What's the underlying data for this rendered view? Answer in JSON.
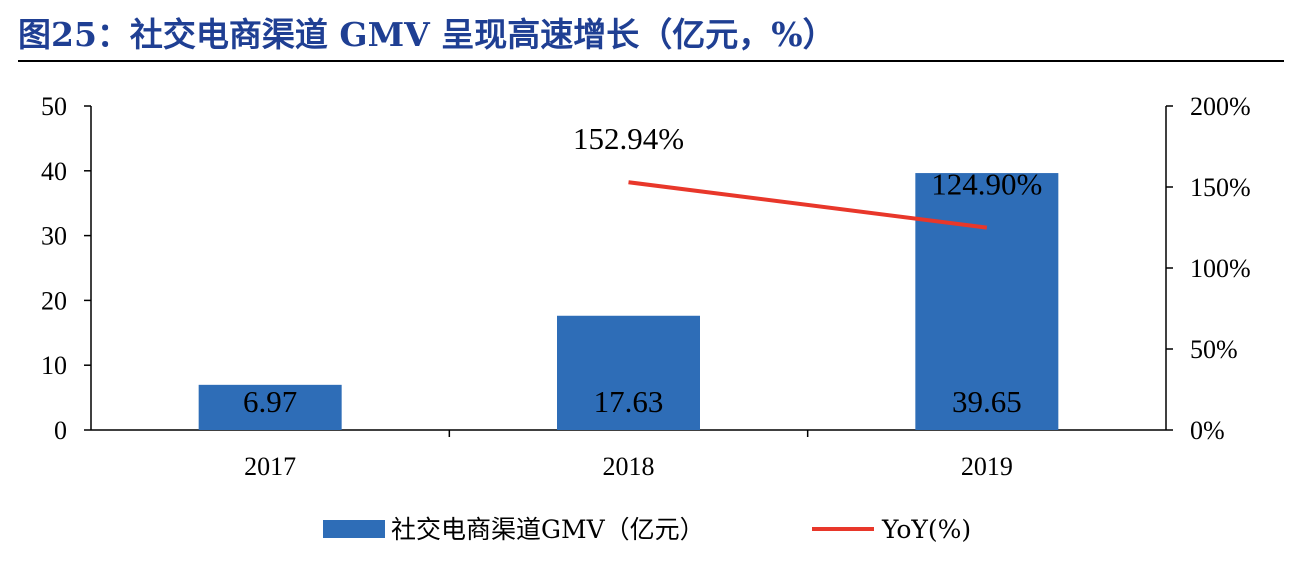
{
  "title": "图25：社交电商渠道 GMV 呈现高速增长（亿元，%）",
  "chart_data": {
    "type": "bar",
    "categories": [
      "2017",
      "2018",
      "2019"
    ],
    "series": [
      {
        "name": "社交电商渠道GMV（亿元）",
        "kind": "bar",
        "axis": "left",
        "color": "#2e6db7",
        "values": [
          6.97,
          17.63,
          39.65
        ],
        "labels": [
          "6.97",
          "17.63",
          "39.65"
        ]
      },
      {
        "name": "YoY(%)",
        "kind": "line",
        "axis": "right",
        "color": "#e8372a",
        "values": [
          null,
          152.94,
          124.9
        ],
        "labels": [
          "",
          "152.94%",
          "124.90%"
        ]
      }
    ],
    "y_left": {
      "min": 0,
      "max": 50,
      "ticks": [
        "0",
        "10",
        "20",
        "30",
        "40",
        "50"
      ]
    },
    "y_right": {
      "min": 0,
      "max": 200,
      "ticks": [
        "0%",
        "50%",
        "100%",
        "150%",
        "200%"
      ]
    },
    "grid": false,
    "legend": "bottom"
  }
}
